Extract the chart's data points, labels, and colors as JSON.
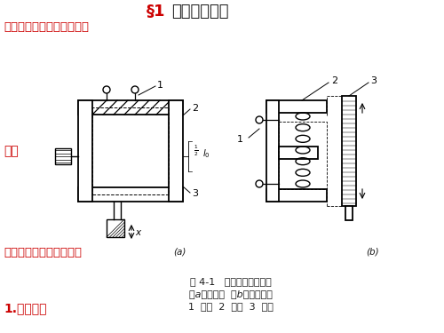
{
  "title_sect": "§1",
  "title_main": "自感式传感器",
  "subtitle": "一、简单式自感电感传感器",
  "label_jiegou": "结构",
  "label_a_text": "（一）气隙型电感传感器",
  "label_a_small": "(a)",
  "label_b_small": "(b)",
  "label_1": "1.工作原理",
  "fig_caption1": "图 4-1   气隙型电感传感器",
  "fig_caption2": "（a）变隙式  （b）变截面式",
  "fig_caption3": "1  线圈  2  铁芯  3  衬铁",
  "red_color": "#cc0000",
  "black_color": "#1a1a1a",
  "bg_color": "#ffffff"
}
